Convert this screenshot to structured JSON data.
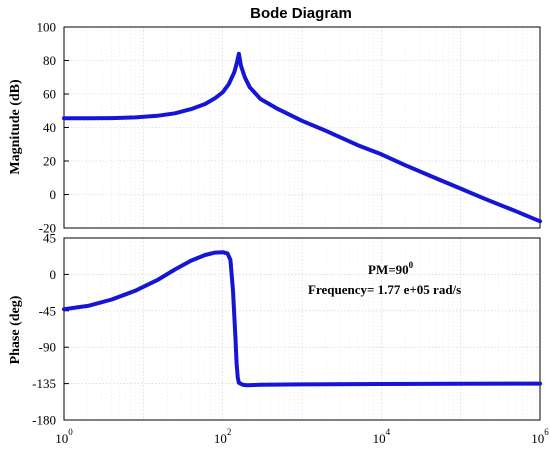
{
  "chart_data": [
    {
      "type": "line",
      "title": "Bode Diagram",
      "ylabel": "Magnitude (dB)",
      "xscale": "log",
      "xlim": [
        1,
        1000000
      ],
      "ylim": [
        -20,
        100
      ],
      "yticks": [
        -20,
        0,
        20,
        40,
        60,
        80,
        100
      ],
      "grid": true,
      "color": "#1515d6",
      "x": [
        1,
        2,
        4,
        8,
        15,
        25,
        40,
        60,
        80,
        100,
        120,
        140,
        150,
        160,
        170,
        190,
        220,
        300,
        500,
        1000,
        2000,
        5000,
        10000,
        20000,
        50000,
        100000,
        200000,
        500000,
        1000000
      ],
      "y": [
        45.5,
        45.5,
        45.6,
        46,
        47,
        48.5,
        51,
        54,
        57.5,
        61,
        66,
        73,
        78,
        84,
        77,
        70,
        64,
        57,
        51,
        44,
        38,
        29.5,
        24,
        17.5,
        9.5,
        3.5,
        -2.5,
        -10,
        -16
      ]
    },
    {
      "type": "line",
      "ylabel": "Phase (deg)",
      "xscale": "log",
      "xlim": [
        1,
        1000000
      ],
      "ylim": [
        -180,
        45
      ],
      "yticks": [
        -180,
        -135,
        -90,
        -45,
        0,
        45
      ],
      "grid": true,
      "color": "#1515d6",
      "xticks": [
        {
          "base": "10",
          "exp": "0"
        },
        {
          "base": "10",
          "exp": "2"
        },
        {
          "base": "10",
          "exp": "4"
        },
        {
          "base": "10",
          "exp": "6"
        }
      ],
      "annotations": {
        "pm_label": "PM=90",
        "pm_sup": "0",
        "frequency": "Frequency= 1.77 e+05 rad/s"
      },
      "x": [
        1,
        2,
        4,
        8,
        15,
        25,
        40,
        60,
        80,
        100,
        115,
        125,
        135,
        145,
        150,
        155,
        160,
        180,
        200,
        300,
        1000,
        10000,
        100000,
        1000000
      ],
      "y": [
        -43,
        -39,
        -31,
        -20,
        -7,
        6,
        17,
        24,
        27,
        27.5,
        26,
        18,
        -20,
        -80,
        -110,
        -128,
        -134,
        -136.5,
        -137,
        -136.5,
        -136,
        -135.5,
        -135.2,
        -135
      ]
    }
  ]
}
